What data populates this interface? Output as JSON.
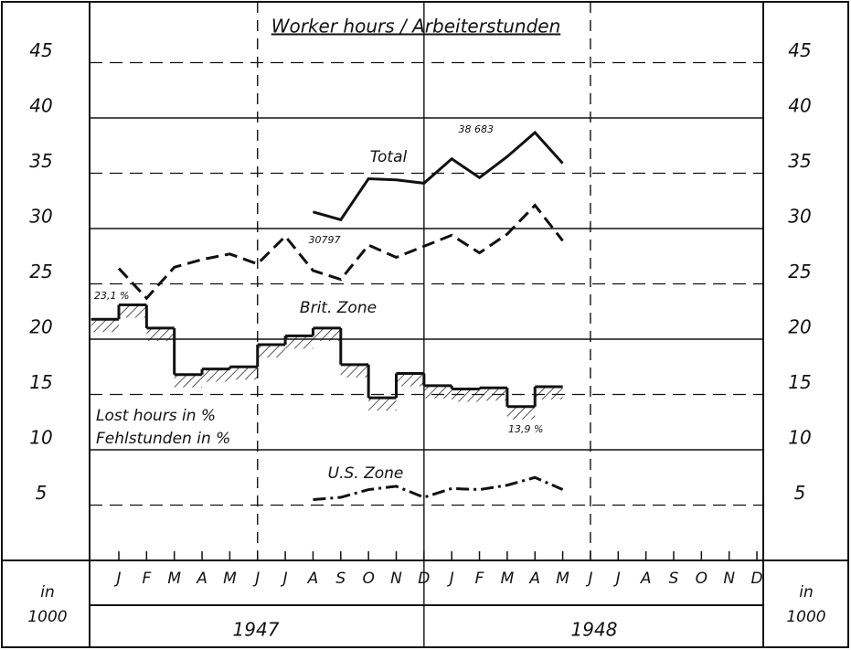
{
  "chart_data": {
    "type": "line",
    "title": "Worker hours / Arbeiterstunden",
    "categories": [
      "J",
      "F",
      "M",
      "A",
      "M",
      "J",
      "J",
      "A",
      "S",
      "O",
      "N",
      "D",
      "J",
      "F",
      "M",
      "A",
      "M",
      "J",
      "J",
      "A",
      "S",
      "O",
      "N",
      "D"
    ],
    "years": [
      "1947",
      "1948"
    ],
    "unit_label": [
      "in",
      "1000"
    ],
    "ylim": [
      0,
      50
    ],
    "yticks": [
      5,
      10,
      15,
      20,
      25,
      30,
      35,
      40,
      45
    ],
    "grid": true,
    "series": [
      {
        "name": "Total",
        "kind": "line",
        "dash": "solid",
        "color": "#111",
        "values": [
          null,
          null,
          null,
          null,
          null,
          null,
          null,
          31.5,
          30.797,
          34.5,
          34.4,
          34.1,
          36.3,
          34.6,
          36.5,
          38.683,
          35.9,
          null,
          null,
          null,
          null,
          null,
          null,
          null
        ],
        "value_labels": [
          null,
          null,
          null,
          null,
          null,
          null,
          null,
          null,
          "30797",
          null,
          null,
          null,
          null,
          null,
          null,
          "38 683",
          null,
          null,
          null,
          null,
          null,
          null,
          null,
          null
        ]
      },
      {
        "name": "Brit. Zone",
        "kind": "line",
        "dash": "dashed",
        "color": "#111",
        "values": [
          26.4,
          23.7,
          26.5,
          27.2,
          27.7,
          26.8,
          29.3,
          26.2,
          25.4,
          28.5,
          27.4,
          28.4,
          29.4,
          27.8,
          29.5,
          32.1,
          28.9,
          null,
          null,
          null,
          null,
          null,
          null,
          null
        ]
      },
      {
        "name": "U.S. Zone",
        "kind": "line",
        "dash": "dashdot",
        "color": "#111",
        "values": [
          null,
          null,
          null,
          null,
          null,
          null,
          null,
          5.5,
          5.7,
          6.4,
          6.7,
          5.7,
          6.5,
          6.4,
          6.8,
          7.5,
          6.4,
          null,
          null,
          null,
          null,
          null,
          null,
          null
        ]
      },
      {
        "name": "Lost hours in %",
        "name_de": "Fehlstunden in %",
        "kind": "step",
        "dash": "solid",
        "color": "#111",
        "values": [
          21.8,
          23.1,
          21.0,
          16.8,
          17.3,
          17.5,
          19.5,
          20.3,
          21.0,
          17.7,
          14.7,
          16.9,
          15.8,
          15.5,
          15.6,
          13.9,
          15.7,
          null,
          null,
          null,
          null,
          null,
          null,
          null
        ],
        "value_labels": [
          null,
          "23,1 %",
          null,
          null,
          null,
          null,
          null,
          null,
          null,
          null,
          null,
          null,
          null,
          null,
          null,
          "13,9 %",
          null,
          null,
          null,
          null,
          null,
          null,
          null,
          null
        ]
      }
    ]
  }
}
